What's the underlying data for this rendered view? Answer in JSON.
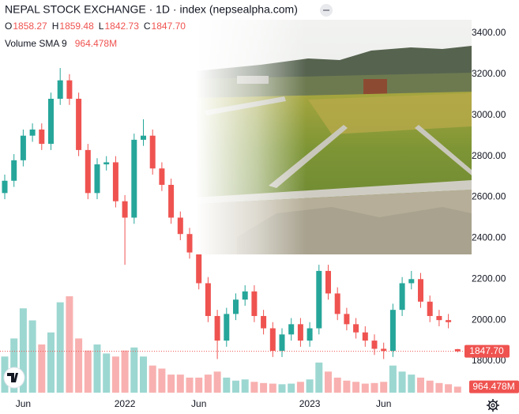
{
  "chart_data": {
    "type": "candlestick",
    "title": "NEPAL STOCK EXCHANGE · 1D · index (nepsealpha.com)",
    "ohlc_keys": [
      "O",
      "H",
      "L",
      "C"
    ],
    "up_color": "#26a69a",
    "down_color": "#ef5350",
    "categories": [
      null,
      null,
      "Jun",
      null,
      null,
      null,
      null,
      null,
      null,
      null,
      null,
      null,
      null,
      "2022",
      null,
      null,
      null,
      null,
      null,
      null,
      null,
      "Jun",
      null,
      null,
      null,
      null,
      null,
      null,
      null,
      null,
      null,
      null,
      null,
      "2023",
      null,
      null,
      null,
      null,
      null,
      null,
      null,
      "Jun",
      null,
      null,
      null,
      null,
      null,
      null,
      null,
      null
    ],
    "open": [
      2620,
      2680,
      2780,
      2900,
      2930,
      2860,
      3080,
      3170,
      3080,
      2830,
      2620,
      2760,
      2770,
      2580,
      2500,
      2880,
      2900,
      2740,
      2660,
      2500,
      2420,
      2330,
      2180,
      2020,
      1900,
      2030,
      2100,
      2140,
      2020,
      1960,
      1850,
      1930,
      1980,
      1900,
      1960,
      2240,
      2130,
      2030,
      1980,
      1940,
      1900,
      1860,
      1850,
      2050,
      2180,
      2200,
      2090,
      2020,
      2000,
      1858.27
    ],
    "high": [
      2710,
      2810,
      2930,
      2960,
      2960,
      3110,
      3230,
      3200,
      3110,
      2860,
      2790,
      2800,
      2800,
      2610,
      2910,
      2980,
      2930,
      2770,
      2690,
      2530,
      2450,
      2360,
      2210,
      2050,
      2060,
      2130,
      2170,
      2170,
      2050,
      1990,
      1960,
      2010,
      2010,
      1990,
      2270,
      2270,
      2160,
      2060,
      2010,
      1970,
      1930,
      1890,
      2080,
      2210,
      2240,
      2230,
      2120,
      2050,
      2030,
      1859.48
    ],
    "low": [
      2590,
      2650,
      2750,
      2870,
      2830,
      2830,
      3050,
      3050,
      2800,
      2590,
      2590,
      2730,
      2550,
      2270,
      2470,
      2850,
      2710,
      2630,
      2470,
      2390,
      2300,
      2150,
      1990,
      1810,
      1870,
      2000,
      2070,
      1990,
      1930,
      1820,
      1820,
      1900,
      1870,
      1870,
      1930,
      2100,
      2000,
      1950,
      1910,
      1870,
      1830,
      1810,
      1820,
      2020,
      2150,
      2060,
      1990,
      1970,
      1960,
      1842.73
    ],
    "close": [
      2680,
      2780,
      2900,
      2930,
      2860,
      3080,
      3170,
      3080,
      2830,
      2620,
      2760,
      2770,
      2580,
      2500,
      2880,
      2900,
      2740,
      2660,
      2500,
      2420,
      2330,
      2180,
      2020,
      1900,
      2030,
      2100,
      2140,
      2020,
      1960,
      1850,
      1930,
      1980,
      1900,
      1960,
      2240,
      2130,
      2030,
      1980,
      1940,
      1900,
      1860,
      1850,
      2050,
      2180,
      2200,
      2090,
      2020,
      2000,
      1990,
      1847.7
    ],
    "last_price": {
      "value": 1847.7,
      "label": "1847.70"
    },
    "ylim": [
      1750,
      3562
    ],
    "yticks": [
      {
        "value": 3400,
        "label": "3400.00"
      },
      {
        "value": 3200,
        "label": "3200.00"
      },
      {
        "value": 3000,
        "label": "3000.00"
      },
      {
        "value": 2800,
        "label": "2800.00"
      },
      {
        "value": 2600,
        "label": "2600.00"
      },
      {
        "value": 2400,
        "label": "2400.00"
      },
      {
        "value": 2200,
        "label": "2200.00"
      },
      {
        "value": 2000,
        "label": "2000.00"
      },
      {
        "value": 1800,
        "label": "1800.00"
      }
    ],
    "volume": {
      "label": "Volume SMA 9",
      "sma": {
        "value": 964.478,
        "label": "964.478M"
      },
      "values": [
        6000,
        9000,
        14000,
        12000,
        8000,
        10000,
        15000,
        16000,
        9000,
        7000,
        8000,
        6500,
        6000,
        7000,
        7500,
        6000,
        4500,
        4000,
        3000,
        3000,
        2500,
        2500,
        3000,
        3500,
        2500,
        2000,
        2200,
        1800,
        1600,
        1500,
        1400,
        1500,
        1800,
        2200,
        5000,
        3500,
        2500,
        2000,
        1800,
        1500,
        1600,
        1800,
        4500,
        3500,
        3000,
        2500,
        2000,
        1600,
        1400,
        1000
      ]
    }
  }
}
